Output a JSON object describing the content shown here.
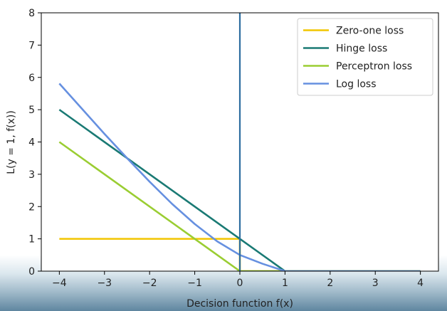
{
  "chart_data": {
    "type": "line",
    "title": "",
    "xlabel": "Decision function f(x)",
    "ylabel": "L(y = 1, f(x))",
    "xlim": [
      -4.4,
      4.4
    ],
    "ylim": [
      0,
      8
    ],
    "xticks": [
      -4,
      -3,
      -2,
      -1,
      0,
      1,
      2,
      3,
      4
    ],
    "yticks": [
      0,
      1,
      2,
      3,
      4,
      5,
      6,
      7,
      8
    ],
    "xtick_labels": [
      "−4",
      "−3",
      "−2",
      "−1",
      "0",
      "1",
      "2",
      "3",
      "4"
    ],
    "ytick_labels": [
      "0",
      "1",
      "2",
      "3",
      "4",
      "5",
      "6",
      "7",
      "8"
    ],
    "grid": false,
    "legend": "top-right",
    "vertical_line": {
      "x": 0,
      "color": "#2d6ea0"
    },
    "series": [
      {
        "name": "Zero-one loss",
        "color": "#f2c500",
        "points": [
          [
            -4,
            1
          ],
          [
            0,
            1
          ],
          [
            0,
            0
          ],
          [
            4,
            0
          ]
        ]
      },
      {
        "name": "Hinge loss",
        "color": "#1a7a74",
        "points": [
          [
            -4,
            5
          ],
          [
            1,
            0
          ],
          [
            4,
            0
          ]
        ]
      },
      {
        "name": "Perceptron loss",
        "color": "#9acd32",
        "points": [
          [
            -4,
            4
          ],
          [
            0,
            0
          ],
          [
            4,
            0
          ]
        ]
      },
      {
        "name": "Log loss",
        "color": "#6690e0",
        "points": [
          [
            -4,
            5.81
          ],
          [
            -3.5,
            5.03
          ],
          [
            -3,
            4.25
          ],
          [
            -2.5,
            3.5
          ],
          [
            -2,
            2.77
          ],
          [
            -1.5,
            2.08
          ],
          [
            -1,
            1.46
          ],
          [
            -0.5,
            0.92
          ],
          [
            0,
            0.5
          ],
          [
            0.5,
            0.23
          ],
          [
            1,
            0.0
          ],
          [
            1.5,
            0.0
          ],
          [
            2,
            0.0
          ],
          [
            2.5,
            0.0
          ],
          [
            3,
            0.0
          ],
          [
            3.5,
            0.0
          ],
          [
            4,
            0.0
          ]
        ]
      }
    ]
  }
}
